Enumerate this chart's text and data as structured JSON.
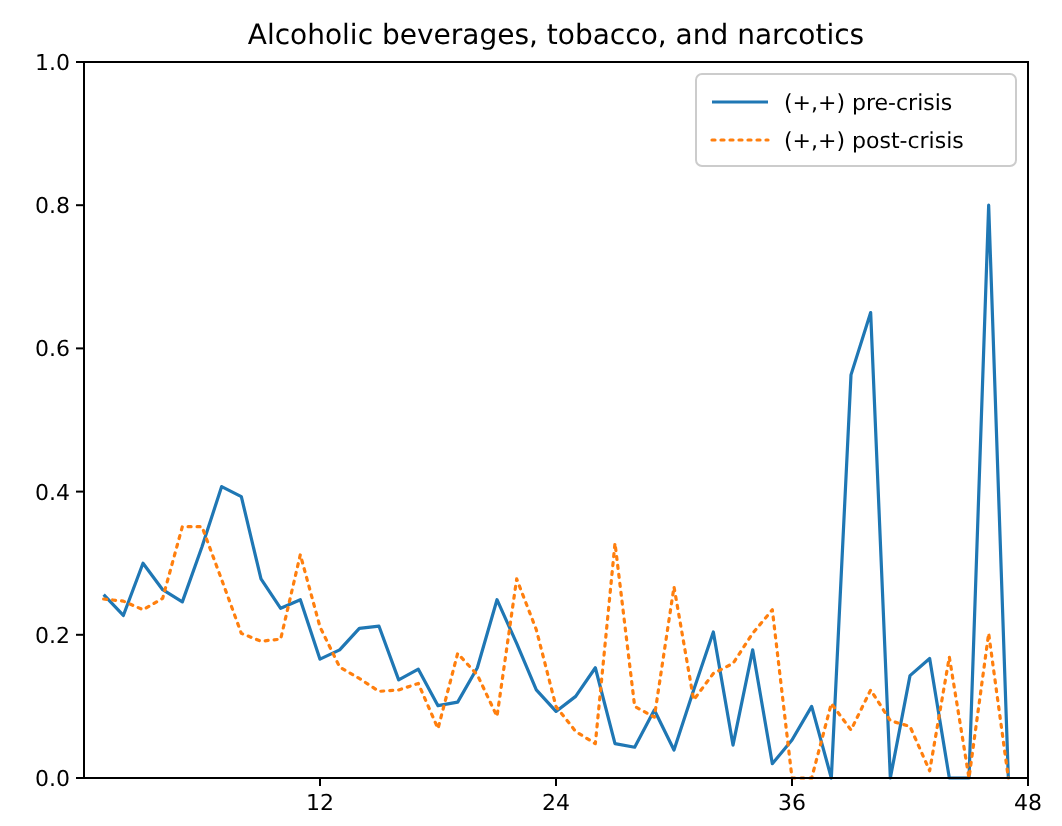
{
  "chart_data": {
    "type": "line",
    "title": "Alcoholic beverages, tobacco, and narcotics",
    "x": [
      1,
      2,
      3,
      4,
      5,
      6,
      7,
      8,
      9,
      10,
      11,
      12,
      13,
      14,
      15,
      16,
      17,
      18,
      19,
      20,
      21,
      22,
      23,
      24,
      25,
      26,
      27,
      28,
      29,
      30,
      31,
      32,
      33,
      34,
      35,
      36,
      37,
      38,
      39,
      40,
      41,
      42,
      43,
      44,
      45,
      46,
      47
    ],
    "series": [
      {
        "name": "(+,+) pre-crisis",
        "color": "#1f77b4",
        "line_style": "solid",
        "values": [
          0.256,
          0.227,
          0.3,
          0.263,
          0.246,
          0.323,
          0.407,
          0.393,
          0.278,
          0.237,
          0.249,
          0.166,
          0.179,
          0.209,
          0.212,
          0.137,
          0.152,
          0.101,
          0.106,
          0.154,
          0.249,
          0.188,
          0.123,
          0.093,
          0.114,
          0.154,
          0.048,
          0.043,
          0.095,
          0.039,
          0.123,
          0.204,
          0.046,
          0.179,
          0.02,
          0.053,
          0.1,
          0,
          0.563,
          0.65,
          0,
          0.143,
          0.167,
          0,
          0,
          0.8,
          0
        ]
      },
      {
        "name": "(+,+) post-crisis",
        "color": "#ff7f0e",
        "line_style": "dotted",
        "values": [
          0.25,
          0.247,
          0.235,
          0.251,
          0.351,
          0.351,
          0.277,
          0.202,
          0.191,
          0.194,
          0.312,
          0.211,
          0.155,
          0.139,
          0.121,
          0.123,
          0.132,
          0.069,
          0.174,
          0.144,
          0.086,
          0.278,
          0.207,
          0.1,
          0.065,
          0.048,
          0.328,
          0.1,
          0.085,
          0.267,
          0.109,
          0.146,
          0.16,
          0.202,
          0.235,
          0,
          0,
          0.104,
          0.067,
          0.123,
          0.08,
          0.072,
          0.01,
          0.169,
          0,
          0.202,
          0
        ]
      }
    ],
    "xlim": [
      0,
      48
    ],
    "xticks": [
      12,
      24,
      36,
      48
    ],
    "ylim": [
      0,
      1
    ],
    "yticks": [
      {
        "value": 0,
        "label": "0.0"
      },
      {
        "value": 0.2,
        "label": "0.2"
      },
      {
        "value": 0.4,
        "label": "0.4"
      },
      {
        "value": 0.6,
        "label": "0.6"
      },
      {
        "value": 0.8,
        "label": "0.8"
      },
      {
        "value": 1,
        "label": "1.0"
      }
    ],
    "legend": "top right"
  }
}
